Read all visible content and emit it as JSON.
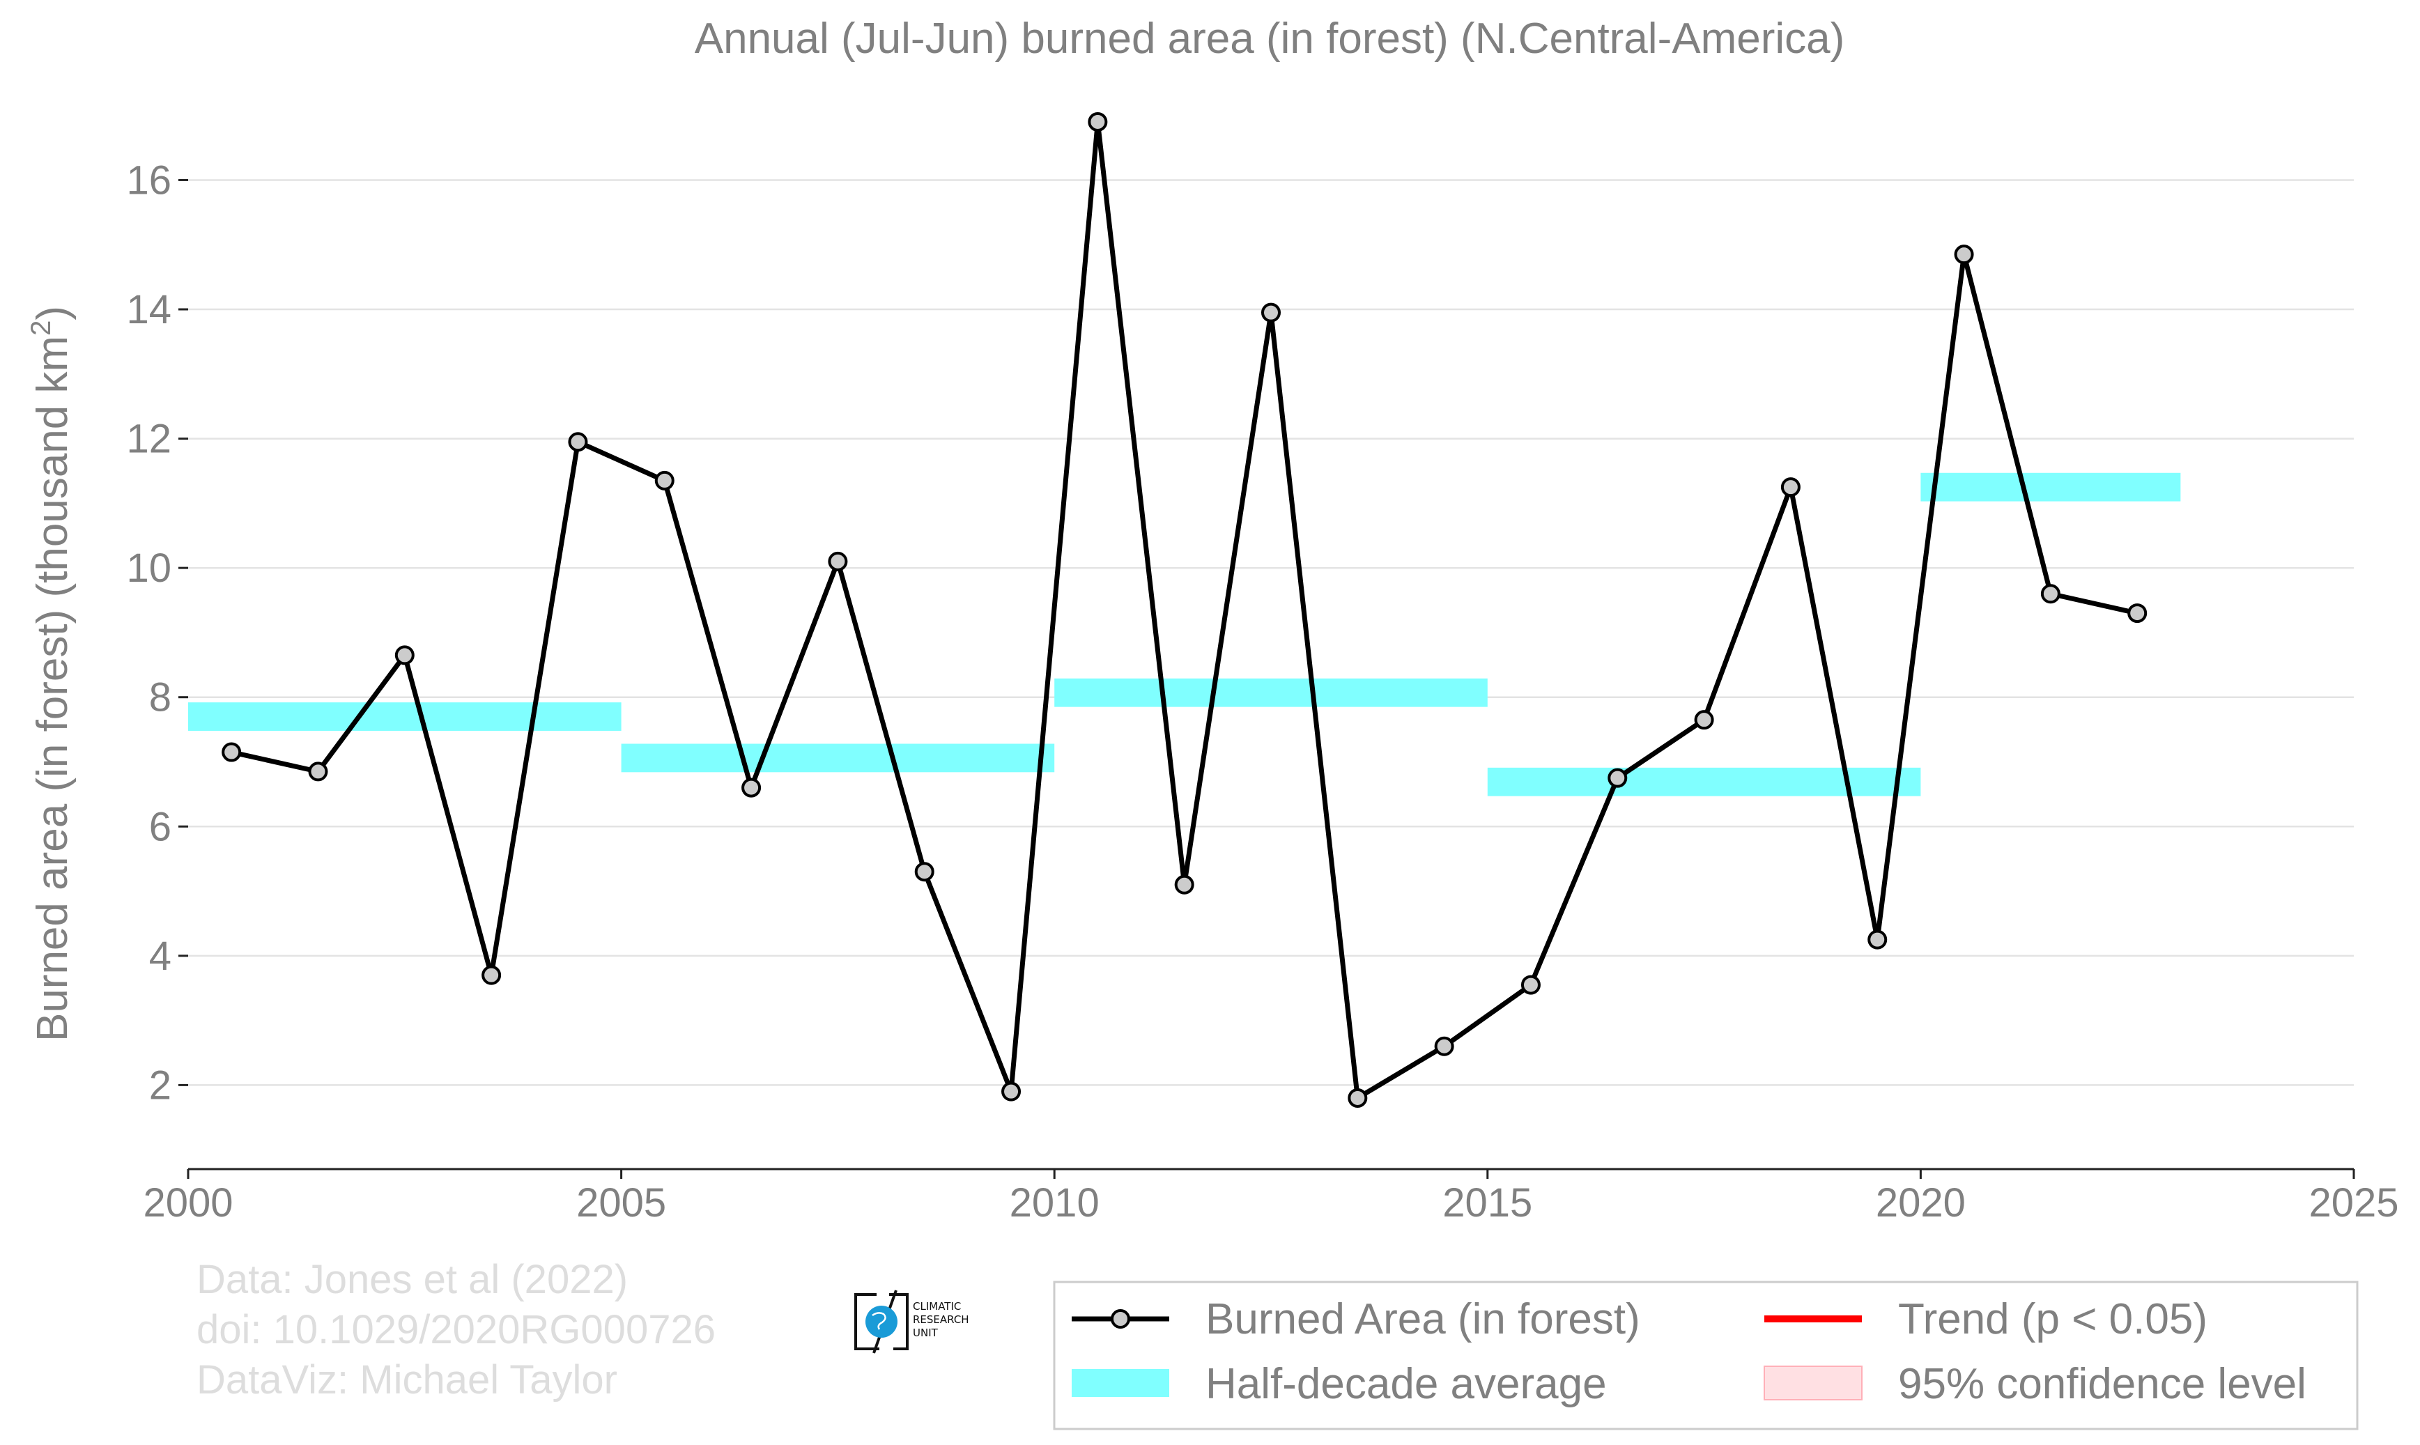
{
  "chart_data": {
    "type": "line",
    "title": "Annual (Jul-Jun) burned area (in forest) (N.Central-America)",
    "ylabel": "Burned area (in forest) (thousand km",
    "ylabel_sup": "2",
    "ylabel_end": ")",
    "xlim": [
      2000,
      2025
    ],
    "ylim": [
      0.7,
      17.6
    ],
    "x_ticks": [
      2000,
      2005,
      2010,
      2015,
      2020,
      2025
    ],
    "y_ticks": [
      2,
      4,
      6,
      8,
      10,
      12,
      14,
      16
    ],
    "grid": "horizontal",
    "legend_position": "bottom-right",
    "series": [
      {
        "name": "Burned Area (in forest)",
        "color": "#000000",
        "marker_color": "#cccccc",
        "x": [
          2000.5,
          2001.5,
          2002.5,
          2003.5,
          2004.5,
          2005.5,
          2006.5,
          2007.5,
          2008.5,
          2009.5,
          2010.5,
          2011.5,
          2012.5,
          2013.5,
          2014.5,
          2015.5,
          2016.5,
          2017.5,
          2018.5,
          2019.5,
          2020.5,
          2021.5,
          2022.5
        ],
        "values": [
          7.15,
          6.85,
          8.65,
          3.7,
          11.95,
          11.35,
          6.6,
          10.1,
          5.3,
          1.9,
          16.9,
          5.1,
          13.95,
          1.8,
          2.6,
          3.55,
          6.75,
          7.65,
          11.25,
          4.25,
          14.85,
          9.6,
          9.3
        ]
      }
    ],
    "half_decade_average": {
      "name": "Half-decade average",
      "color": "#80ffff",
      "segments": [
        {
          "x_start": 2000,
          "x_end": 2005,
          "value": 7.7
        },
        {
          "x_start": 2005,
          "x_end": 2010,
          "value": 7.06
        },
        {
          "x_start": 2010,
          "x_end": 2015,
          "value": 8.07
        },
        {
          "x_start": 2015,
          "x_end": 2020,
          "value": 6.69
        },
        {
          "x_start": 2020,
          "x_end": 2023,
          "value": 11.25
        }
      ]
    },
    "legend": [
      {
        "label": "Burned Area (in forest)",
        "kind": "line-marker",
        "color": "#000000"
      },
      {
        "label": "Trend (p < 0.05)",
        "kind": "line",
        "color": "#ff0000"
      },
      {
        "label": "Half-decade average",
        "kind": "band",
        "color": "#80ffff"
      },
      {
        "label": "95% confidence level",
        "kind": "patch",
        "color": "#ffe0e3"
      }
    ],
    "credits": [
      "Data: Jones et al (2022)",
      "doi: 10.1029/2020RG000726",
      "DataViz: Michael Taylor"
    ]
  },
  "logo": {
    "lines": [
      "CLIMATIC",
      "RESEARCH",
      "UNIT"
    ],
    "color": "#1a9bd7"
  }
}
